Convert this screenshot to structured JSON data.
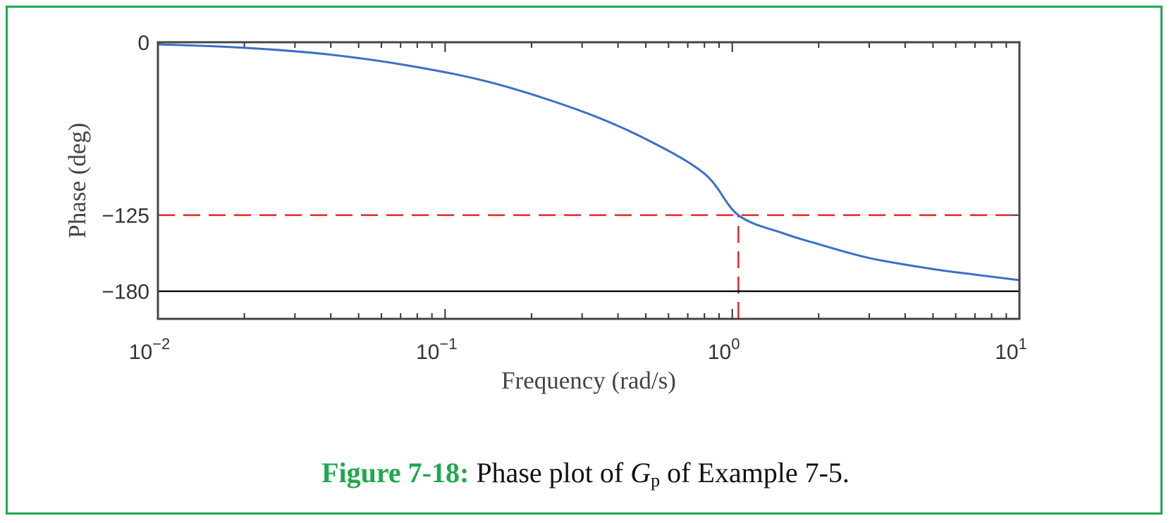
{
  "chart_data": {
    "type": "line",
    "xlabel": "Frequency (rad/s)",
    "ylabel": "Phase (deg)",
    "x_scale": "log",
    "xlim": [
      0.01,
      10
    ],
    "ylim": [
      -200,
      0
    ],
    "x_ticks": [
      {
        "value": 0.01,
        "base": "10",
        "exp": "−2"
      },
      {
        "value": 0.1,
        "base": "10",
        "exp": "−1"
      },
      {
        "value": 1,
        "base": "10",
        "exp": "0"
      },
      {
        "value": 10,
        "base": "10",
        "exp": "1"
      }
    ],
    "y_ticks": [
      {
        "value": 0,
        "label": "0"
      },
      {
        "value": -125,
        "label": "−125"
      },
      {
        "value": -180,
        "label": "−180"
      }
    ],
    "series": [
      {
        "color": "#3b6fc6",
        "x": [
          0.01,
          0.02,
          0.04,
          0.08,
          0.15,
          0.3,
          0.5,
          0.8,
          1.05,
          1.5,
          2,
          3,
          5,
          7,
          10
        ],
        "y": [
          -1.5,
          -4,
          -9,
          -18,
          -30,
          -50,
          -70,
          -95,
          -125,
          -138,
          -146,
          -156,
          -164,
          -168,
          -172
        ]
      }
    ],
    "reference_lines": [
      {
        "orientation": "horizontal",
        "value": -125,
        "style": "dashed",
        "color": "#e0282a",
        "x_from": 0.01,
        "x_to": 10
      },
      {
        "orientation": "vertical",
        "value": 1.05,
        "style": "dashed",
        "color": "#e0282a",
        "y_from": -200,
        "y_to": -125
      },
      {
        "orientation": "horizontal",
        "value": -180,
        "style": "solid",
        "color": "#111111",
        "x_from": 0.01,
        "x_to": 10
      }
    ],
    "grid": false
  },
  "caption": {
    "label": "Figure 7-18:",
    "text_before": " Phase plot of ",
    "symbol": "G",
    "subscript": "p",
    "text_after": " of Example 7-5."
  },
  "colors": {
    "accent": "#1fa84f",
    "curve": "#3b6fc6",
    "reference": "#e0282a"
  }
}
